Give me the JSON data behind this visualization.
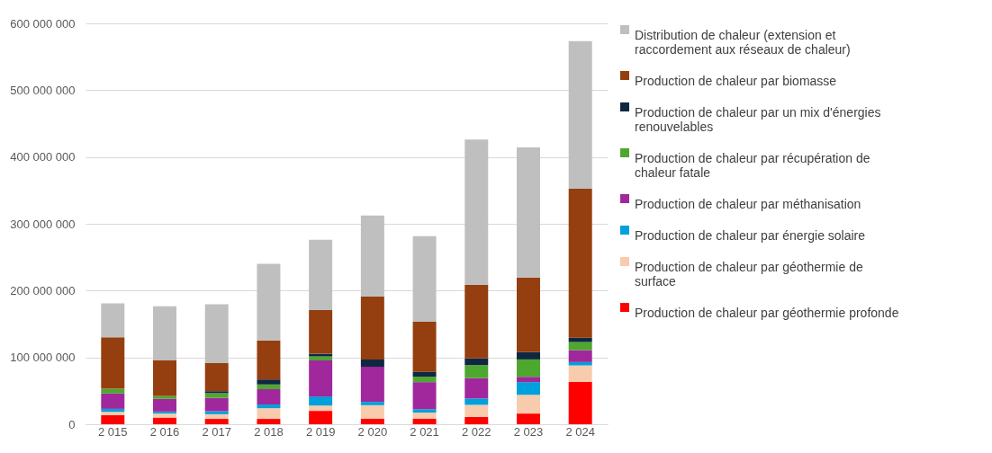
{
  "chart_data": {
    "type": "bar",
    "stacked": true,
    "categories": [
      "2 015",
      "2 016",
      "2 017",
      "2 018",
      "2 019",
      "2 020",
      "2 021",
      "2 022",
      "2 023",
      "2 024"
    ],
    "series": [
      {
        "name": "Production de chaleur par géothermie profonde",
        "color": "#ff0000",
        "values": [
          13500000,
          10000000,
          8000000,
          8000000,
          20000000,
          8500000,
          8500000,
          11000000,
          16000000,
          63500000
        ]
      },
      {
        "name": "Production de chaleur par géothermie de surface",
        "color": "#f8cbad",
        "values": [
          5000000,
          6000000,
          7000000,
          16000000,
          8000000,
          20000000,
          9000000,
          18000000,
          28000000,
          24500000
        ]
      },
      {
        "name": "Production de chaleur par énergie solaire",
        "color": "#00a0dc",
        "values": [
          4500000,
          3000000,
          4500000,
          5500000,
          13500000,
          5000000,
          5000000,
          9500000,
          19000000,
          5000000
        ]
      },
      {
        "name": "Production de chaleur par méthanisation",
        "color": "#a0289c",
        "values": [
          23000000,
          19000000,
          20000000,
          23000000,
          54000000,
          52500000,
          40500000,
          30500000,
          8000000,
          18000000
        ]
      },
      {
        "name": "Production de chaleur par récupération de chaleur fatale",
        "color": "#4ea72e",
        "values": [
          7000000,
          4500000,
          7000000,
          7000000,
          6000000,
          0,
          8000000,
          19500000,
          26000000,
          12000000
        ]
      },
      {
        "name": "Production de chaleur par un mix d'énergies renouvelables",
        "color": "#0e2841",
        "values": [
          0,
          null,
          3000000,
          7500000,
          4000000,
          11000000,
          7500000,
          10000000,
          11000000,
          6500000
        ]
      },
      {
        "name": "Production de chaleur par biomasse",
        "color": "#953e0f",
        "values": [
          77000000,
          53000000,
          42000000,
          58500000,
          65500000,
          94000000,
          75000000,
          110500000,
          111500000,
          223000000
        ]
      },
      {
        "name": "Distribution de chaleur (extension et raccordement aux réseaux de chaleur)",
        "color": "#bfbfbf",
        "values": [
          51000000,
          81000000,
          88000000,
          114500000,
          105000000,
          121600000,
          128000000,
          217000000,
          195000000,
          221000000
        ]
      }
    ],
    "ylim": [
      0,
      600000000
    ],
    "yticks": [
      0,
      100000000,
      200000000,
      300000000,
      400000000,
      500000000,
      600000000
    ],
    "grid": "y",
    "legend": "right"
  }
}
